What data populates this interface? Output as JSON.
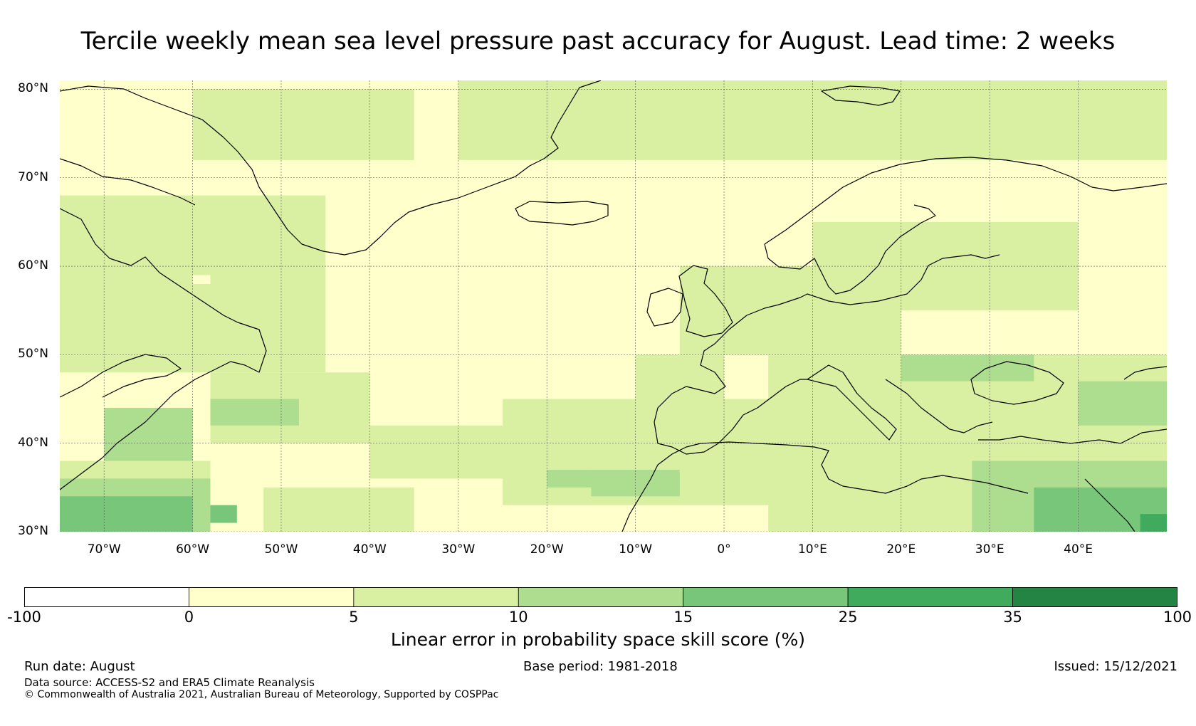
{
  "title": "Tercile weekly mean sea level pressure past accuracy for August. Lead time: 2 weeks",
  "map": {
    "lon_range": [
      -75,
      50
    ],
    "lat_range": [
      30,
      81
    ],
    "lat_ticks": [
      {
        "value": 80,
        "label": "80°N"
      },
      {
        "value": 70,
        "label": "70°N"
      },
      {
        "value": 60,
        "label": "60°N"
      },
      {
        "value": 50,
        "label": "50°N"
      },
      {
        "value": 40,
        "label": "40°N"
      },
      {
        "value": 30,
        "label": "30°N"
      }
    ],
    "lon_ticks": [
      {
        "value": -70,
        "label": "70°W"
      },
      {
        "value": -60,
        "label": "60°W"
      },
      {
        "value": -50,
        "label": "50°W"
      },
      {
        "value": -40,
        "label": "40°W"
      },
      {
        "value": -30,
        "label": "30°W"
      },
      {
        "value": -20,
        "label": "20°W"
      },
      {
        "value": -10,
        "label": "10°W"
      },
      {
        "value": 0,
        "label": "0°"
      },
      {
        "value": 10,
        "label": "10°E"
      },
      {
        "value": 20,
        "label": "20°E"
      },
      {
        "value": 30,
        "label": "30°E"
      },
      {
        "value": 40,
        "label": "40°E"
      }
    ],
    "skill_regions": [
      {
        "level": 1,
        "cells": [
          [
            -75,
            -58,
            30,
            38
          ],
          [
            -52,
            -35,
            30,
            35
          ],
          [
            -40,
            -25,
            36,
            42
          ],
          [
            -25,
            10,
            33,
            45
          ],
          [
            -58,
            -40,
            40,
            48
          ],
          [
            -75,
            -45,
            48,
            68
          ],
          [
            -60,
            -35,
            72,
            80
          ],
          [
            -10,
            0,
            43,
            50
          ],
          [
            5,
            50,
            30,
            50
          ],
          [
            -30,
            50,
            72,
            81
          ],
          [
            -5,
            20,
            50,
            60
          ],
          [
            10,
            40,
            55,
            65
          ]
        ]
      },
      {
        "level": 2,
        "cells": [
          [
            -75,
            -58,
            30,
            36
          ],
          [
            -70,
            -60,
            38,
            44
          ],
          [
            -58,
            -48,
            42,
            45
          ],
          [
            -15,
            -5,
            34,
            37
          ],
          [
            28,
            50,
            30,
            38
          ],
          [
            20,
            35,
            47,
            50
          ],
          [
            40,
            50,
            42,
            47
          ],
          [
            -20,
            -15,
            35,
            37
          ]
        ]
      },
      {
        "level": 3,
        "cells": [
          [
            -75,
            -60,
            30,
            34
          ],
          [
            35,
            50,
            30,
            35
          ],
          [
            -58,
            -55,
            31,
            33
          ]
        ]
      },
      {
        "level": 4,
        "cells": [
          [
            47,
            50,
            30,
            32
          ]
        ]
      },
      {
        "level": 0,
        "cells": [
          [
            -33,
            -30,
            55,
            57
          ],
          [
            42,
            50,
            51,
            56
          ],
          [
            25,
            30,
            69,
            71
          ],
          [
            -60,
            -58,
            58,
            59
          ]
        ]
      }
    ]
  },
  "colorbar": {
    "ticks": [
      "-100",
      "0",
      "5",
      "10",
      "15",
      "25",
      "35",
      "100"
    ],
    "colors": [
      "#ffffff",
      "#ffffcc",
      "#d9f0a3",
      "#addd8e",
      "#78c679",
      "#41ab5d",
      "#238443"
    ],
    "label": "Linear error in probability space skill score (%)"
  },
  "footer": {
    "run_date": "Run date: August",
    "base_period": "Base period: 1981-2018",
    "issued": "Issued: 15/12/2021",
    "data_source": "Data source: ACCESS-S2 and ERA5 Climate Reanalysis",
    "copyright": "© Commonwealth of Australia 2021, Australian Bureau of Meteorology, Supported by COSPPac"
  }
}
